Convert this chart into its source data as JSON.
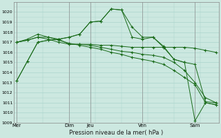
{
  "xlabel": "Pression niveau de la mer( hPa )",
  "background_color": "#cce8e0",
  "grid_color": "#aad4cc",
  "line_color": "#1a6b1a",
  "ylim": [
    1009,
    1021
  ],
  "ytick_min": 1009,
  "ytick_max": 1020,
  "x_tick_labels": [
    "Mer",
    "Dim",
    "Jeu",
    "Ven",
    "Sam"
  ],
  "x_tick_positions": [
    0,
    5,
    7,
    12,
    17
  ],
  "vline_positions": [
    0,
    5,
    7,
    12,
    17
  ],
  "xlim": [
    -0.3,
    19.3
  ],
  "lines": [
    [
      1013.2,
      1015.1,
      1017.0,
      1017.2,
      1017.3,
      1017.5,
      1017.8,
      1019.0,
      1019.1,
      1020.3,
      1020.2,
      1018.5,
      1017.5,
      1017.5,
      1016.6,
      1015.3,
      1015.0,
      1014.8,
      1011.1,
      1011.0
    ],
    [
      1017.0,
      1017.2,
      1017.5,
      1017.3,
      1017.0,
      1016.8,
      1016.8,
      1016.8,
      1016.7,
      1016.7,
      1016.6,
      1016.5,
      1016.5,
      1016.5,
      1016.5,
      1016.5,
      1016.5,
      1016.4,
      1016.2,
      1016.0
    ],
    [
      1017.0,
      1017.3,
      1017.8,
      1017.5,
      1017.2,
      1016.9,
      1016.7,
      1016.5,
      1016.3,
      1016.0,
      1015.8,
      1015.5,
      1015.3,
      1015.1,
      1014.8,
      1014.2,
      1013.5,
      1012.8,
      1011.0,
      1010.8
    ],
    [
      1017.0,
      1017.2,
      1017.5,
      1017.5,
      1017.3,
      1016.8,
      1016.8,
      1016.7,
      1016.5,
      1016.3,
      1016.1,
      1016.0,
      1015.8,
      1015.7,
      1015.5,
      1015.0,
      1014.2,
      1013.0,
      1011.5,
      1011.0
    ],
    [
      1013.2,
      1015.1,
      1017.0,
      1017.2,
      1017.3,
      1017.5,
      1017.8,
      1019.0,
      1019.1,
      1020.3,
      1020.2,
      1017.5,
      1017.3,
      1017.5,
      1016.5,
      1015.3,
      1015.0,
      1009.2,
      1011.0,
      1010.8
    ]
  ]
}
